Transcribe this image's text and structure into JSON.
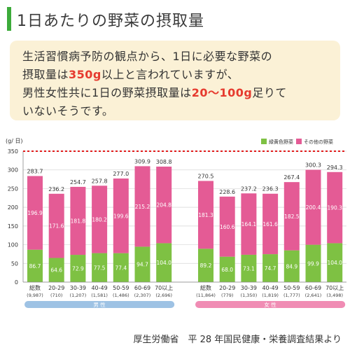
{
  "title": "1日あたりの野菜の摂取量",
  "note": {
    "line1": "生活習慣病予防の観点から、1日に必要な野菜の",
    "line2_a": "摂取量は",
    "line2_hl": "350g",
    "line2_b": "以上と言われていますが、",
    "line3_a": "男性女性共に1日の野菜摂取量は",
    "line3_hl": "20～100g",
    "line3_b": "足りて",
    "line4": "いないそうです。"
  },
  "colors": {
    "green": "#7ec143",
    "pink": "#e45b95",
    "accent_red": "#e63a2e",
    "male_bar": "#9ec2e4",
    "female_bar": "#f08cb4",
    "dotted": "#e11c1c"
  },
  "chart_data": {
    "type": "bar",
    "stacked": true,
    "ylabel": "(g/ 日)",
    "ylim": [
      0,
      350
    ],
    "yticks": [
      0,
      50,
      100,
      150,
      200,
      250,
      300,
      350
    ],
    "reference_line": 350,
    "legend": [
      "緑黄色野菜",
      "その他の野菜"
    ],
    "legend_placement": "top-right",
    "groups": [
      {
        "name": "男 性",
        "categories": [
          "総数",
          "20-29",
          "30-39",
          "40-49",
          "50-59",
          "60-69",
          "70以上"
        ],
        "counts": [
          "(9,987)",
          "(710)",
          "(1,207)",
          "(1,581)",
          "(1,486)",
          "(2,307)",
          "(2,696)"
        ],
        "series": [
          {
            "name": "緑黄色野菜",
            "values": [
              86.7,
              64.6,
              72.9,
              77.5,
              77.4,
              94.7,
              104.0
            ]
          },
          {
            "name": "その他の野菜",
            "values": [
              196.9,
              171.6,
              181.8,
              180.2,
              199.6,
              215.2,
              204.8
            ]
          }
        ],
        "totals": [
          283.7,
          236.2,
          254.7,
          257.8,
          277.0,
          309.9,
          308.8
        ]
      },
      {
        "name": "女 性",
        "categories": [
          "総数",
          "20-29",
          "30-39",
          "40-49",
          "50-59",
          "60-69",
          "70以上"
        ],
        "counts": [
          "(11,864)",
          "(779)",
          "(1,350)",
          "(1,819)",
          "(1,777)",
          "(2,641)",
          "(3,498)"
        ],
        "series": [
          {
            "name": "緑黄色野菜",
            "values": [
              89.2,
              68.0,
              73.1,
              74.7,
              84.9,
              99.9,
              104.0
            ]
          },
          {
            "name": "その他の野菜",
            "values": [
              181.3,
              160.6,
              164.1,
              161.6,
              182.5,
              200.4,
              190.3
            ]
          }
        ],
        "totals": [
          270.5,
          228.6,
          237.2,
          236.3,
          267.4,
          300.3,
          294.3
        ]
      }
    ]
  },
  "source": "厚生労働省　平 28 年国民健康・栄養調査結果より"
}
